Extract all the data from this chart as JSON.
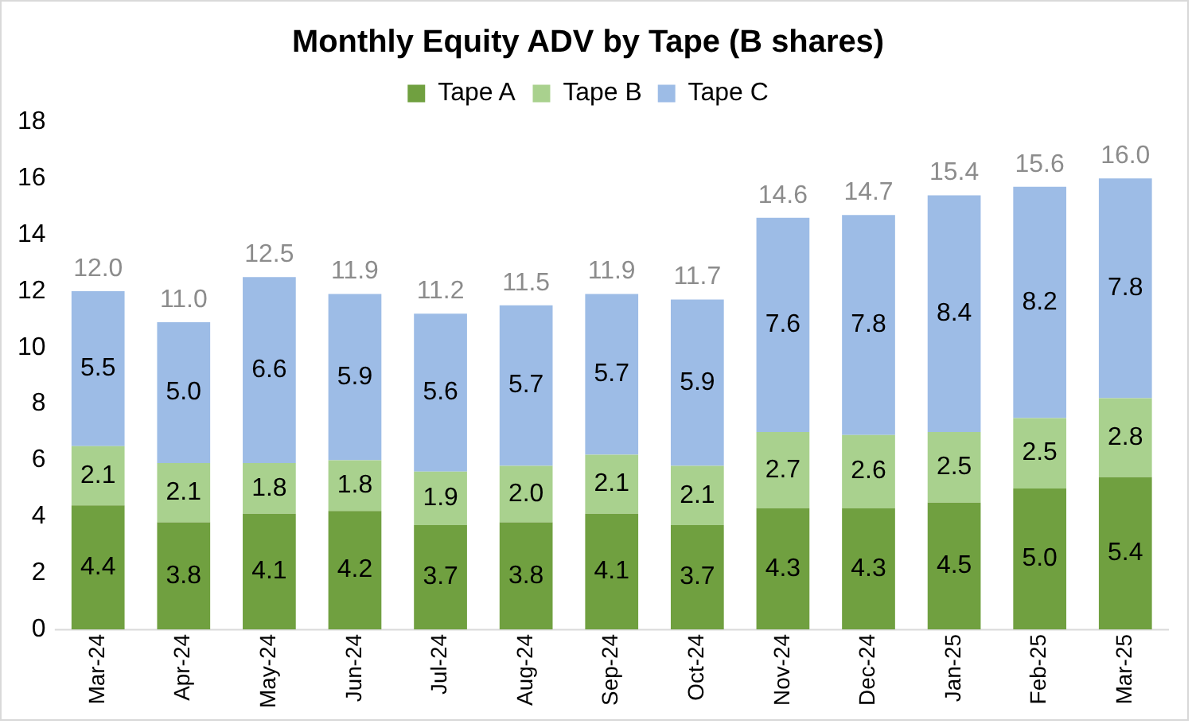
{
  "chart_data": {
    "type": "bar",
    "title": "Monthly Equity ADV by Tape (B shares)",
    "stacked": true,
    "legend": "top",
    "grid": false,
    "categories": [
      "Mar-24",
      "Apr-24",
      "May-24",
      "Jun-24",
      "Jul-24",
      "Aug-24",
      "Sep-24",
      "Oct-24",
      "Nov-24",
      "Dec-24",
      "Jan-25",
      "Feb-25",
      "Mar-25"
    ],
    "series": [
      {
        "name": "Tape A",
        "color": "#70a040",
        "values": [
          4.4,
          3.8,
          4.1,
          4.2,
          3.7,
          3.8,
          4.1,
          3.7,
          4.3,
          4.3,
          4.5,
          5.0,
          5.4
        ],
        "value_labels": [
          "4.4",
          "3.8",
          "4.1",
          "4.2",
          "3.7",
          "3.8",
          "4.1",
          "3.7",
          "4.3",
          "4.3",
          "4.5",
          "5.0",
          "5.4"
        ]
      },
      {
        "name": "Tape B",
        "color": "#a9d18e",
        "values": [
          2.1,
          2.1,
          1.8,
          1.8,
          1.9,
          2.0,
          2.1,
          2.1,
          2.7,
          2.6,
          2.5,
          2.5,
          2.8
        ],
        "value_labels": [
          "2.1",
          "2.1",
          "1.8",
          "1.8",
          "1.9",
          "2.0",
          "2.1",
          "2.1",
          "2.7",
          "2.6",
          "2.5",
          "2.5",
          "2.8"
        ]
      },
      {
        "name": "Tape C",
        "color": "#9dbce6",
        "values": [
          5.5,
          5.0,
          6.6,
          5.9,
          5.6,
          5.7,
          5.7,
          5.9,
          7.6,
          7.8,
          8.4,
          8.2,
          7.8
        ],
        "value_labels": [
          "5.5",
          "5.0",
          "6.6",
          "5.9",
          "5.6",
          "5.7",
          "5.7",
          "5.9",
          "7.6",
          "7.8",
          "8.4",
          "8.2",
          "7.8"
        ]
      }
    ],
    "totals": [
      "12.0",
      "11.0",
      "12.5",
      "11.9",
      "11.2",
      "11.5",
      "11.9",
      "11.7",
      "14.6",
      "14.7",
      "15.4",
      "15.6",
      "16.0"
    ],
    "ylim": [
      0,
      18
    ],
    "yticks": [
      0,
      2,
      4,
      6,
      8,
      10,
      12,
      14,
      16,
      18
    ]
  }
}
